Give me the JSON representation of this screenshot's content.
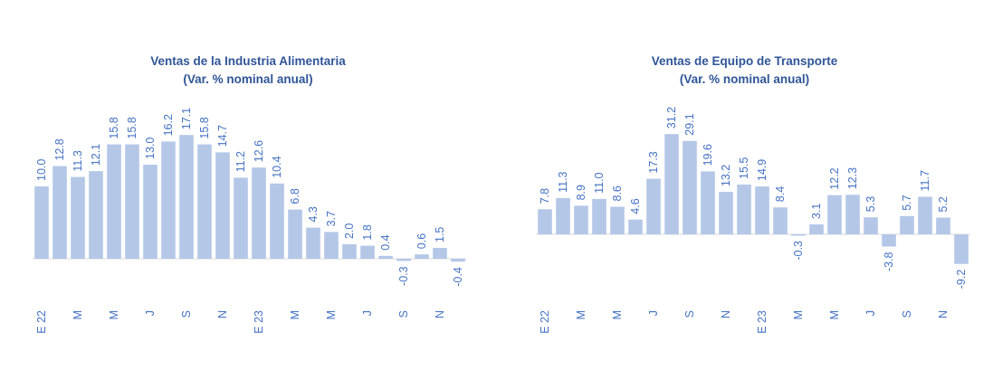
{
  "chart_data": [
    {
      "type": "bar",
      "title": "Ventas de la Industria Alimentaria",
      "subtitle": "(Var. % nominal anual)",
      "values": [
        10.0,
        12.8,
        11.3,
        12.1,
        15.8,
        15.8,
        13.0,
        16.2,
        17.1,
        15.8,
        14.7,
        11.2,
        12.6,
        10.4,
        6.8,
        4.3,
        3.7,
        2.0,
        1.8,
        0.4,
        -0.3,
        0.6,
        1.5,
        -0.4
      ],
      "value_labels": [
        "10.0",
        "12.8",
        "11.3",
        "12.1",
        "15.8",
        "15.8",
        "13.0",
        "16.2",
        "17.1",
        "15.8",
        "14.7",
        "11.2",
        "12.6",
        "10.4",
        "6.8",
        "4.3",
        "3.7",
        "2.0",
        "1.8",
        "0.4",
        "-0.3",
        "0.6",
        "1.5",
        "-0.4"
      ],
      "tick_labels": [
        "E 22",
        "",
        "M",
        "",
        "M",
        "",
        "J",
        "",
        "S",
        "",
        "N",
        "",
        "E 23",
        "",
        "M",
        "",
        "M",
        "",
        "J",
        "",
        "S",
        "",
        "N",
        ""
      ],
      "ylim": [
        -0.5,
        17.1
      ],
      "grid": false,
      "legend": "none",
      "colors": {
        "bar": "#b4c7e7",
        "text": "#4472c4",
        "title": "#2f5597"
      }
    },
    {
      "type": "bar",
      "title": "Ventas de Equipo de Transporte",
      "subtitle": "(Var. % nominal anual)",
      "values": [
        7.8,
        11.3,
        8.9,
        11.0,
        8.6,
        4.6,
        17.3,
        31.2,
        29.1,
        19.6,
        13.2,
        15.5,
        14.9,
        8.4,
        -0.3,
        3.1,
        12.2,
        12.3,
        5.3,
        -3.8,
        5.7,
        11.7,
        5.2,
        -9.2
      ],
      "value_labels": [
        "7.8",
        "11.3",
        "8.9",
        "11.0",
        "8.6",
        "4.6",
        "17.3",
        "31.2",
        "29.1",
        "19.6",
        "13.2",
        "15.5",
        "14.9",
        "8.4",
        "-0.3",
        "3.1",
        "12.2",
        "12.3",
        "5.3",
        "-3.8",
        "5.7",
        "11.7",
        "5.2",
        "-9.2"
      ],
      "tick_labels": [
        "E 22",
        "",
        "M",
        "",
        "M",
        "",
        "J",
        "",
        "S",
        "",
        "N",
        "",
        "E 23",
        "",
        "M",
        "",
        "M",
        "",
        "J",
        "",
        "S",
        "",
        "N",
        ""
      ],
      "ylim": [
        -9.2,
        31.2
      ],
      "grid": false,
      "legend": "none",
      "colors": {
        "bar": "#b4c7e7",
        "text": "#4472c4",
        "title": "#2f5597"
      }
    }
  ]
}
